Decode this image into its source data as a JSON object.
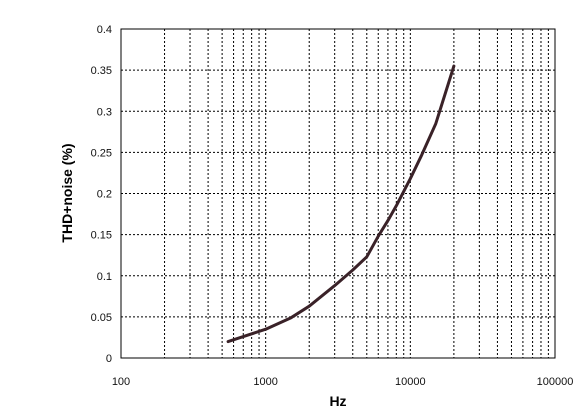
{
  "chart_data": {
    "type": "line",
    "title": "",
    "xlabel": "Hz",
    "ylabel": "THD+noise (%)",
    "x_scale": "log",
    "xlim": [
      100,
      100000
    ],
    "ylim": [
      0,
      0.4
    ],
    "grid": true,
    "x_ticks": [
      "100",
      "1000",
      "10000",
      "100000"
    ],
    "y_ticks": [
      "0",
      "0.05",
      "0.1",
      "0.15",
      "0.2",
      "0.25",
      "0.3",
      "0.35",
      "0.4"
    ],
    "series": [
      {
        "color": "#3a2228",
        "x": [
          550,
          700,
          1000,
          1500,
          2000,
          3000,
          4000,
          5000,
          6000,
          7000,
          8000,
          10000,
          12000,
          15000,
          20000
        ],
        "y": [
          0.02,
          0.026,
          0.035,
          0.049,
          0.063,
          0.088,
          0.107,
          0.123,
          0.148,
          0.167,
          0.185,
          0.218,
          0.247,
          0.285,
          0.355
        ]
      }
    ]
  }
}
